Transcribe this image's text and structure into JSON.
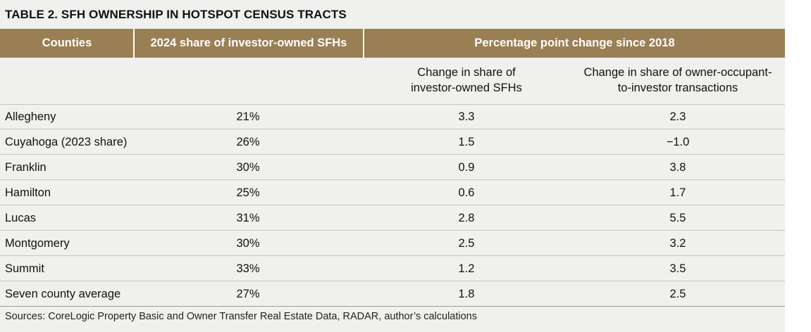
{
  "title": "TABLE 2. SFH OWNERSHIP IN HOTSPOT CENSUS TRACTS",
  "header": {
    "counties": "Counties",
    "share_2024": "2024 share of investor-owned SFHs",
    "pp_change": "Percentage point change since 2018"
  },
  "subheaders": {
    "change_investor_line1": "Change in share of",
    "change_investor_line2": "investor-owned SFHs",
    "change_transactions_line1": "Change in share of owner-occupant-",
    "change_transactions_line2": "to-investor transactions"
  },
  "rows": [
    {
      "county": "Allegheny",
      "share": "21%",
      "change_investor": "3.3",
      "change_transactions": "2.3"
    },
    {
      "county": "Cuyahoga (2023 share)",
      "share": "26%",
      "change_investor": "1.5",
      "change_transactions": "−1.0"
    },
    {
      "county": "Franklin",
      "share": "30%",
      "change_investor": "0.9",
      "change_transactions": "3.8"
    },
    {
      "county": "Hamilton",
      "share": "25%",
      "change_investor": "0.6",
      "change_transactions": "1.7"
    },
    {
      "county": "Lucas",
      "share": "31%",
      "change_investor": "2.8",
      "change_transactions": "5.5"
    },
    {
      "county": "Montgomery",
      "share": "30%",
      "change_investor": "2.5",
      "change_transactions": "3.2"
    },
    {
      "county": "Summit",
      "share": "33%",
      "change_investor": "1.2",
      "change_transactions": "3.5"
    },
    {
      "county": "Seven county average",
      "share": "27%",
      "change_investor": "1.8",
      "change_transactions": "2.5"
    }
  ],
  "source": "Sources: CoreLogic Property Basic and Owner Transfer Real Estate Data, RADAR, author’s calculations",
  "colors": {
    "header_bg": "#9a7f55",
    "panel_bg": "#f0f0ee"
  }
}
